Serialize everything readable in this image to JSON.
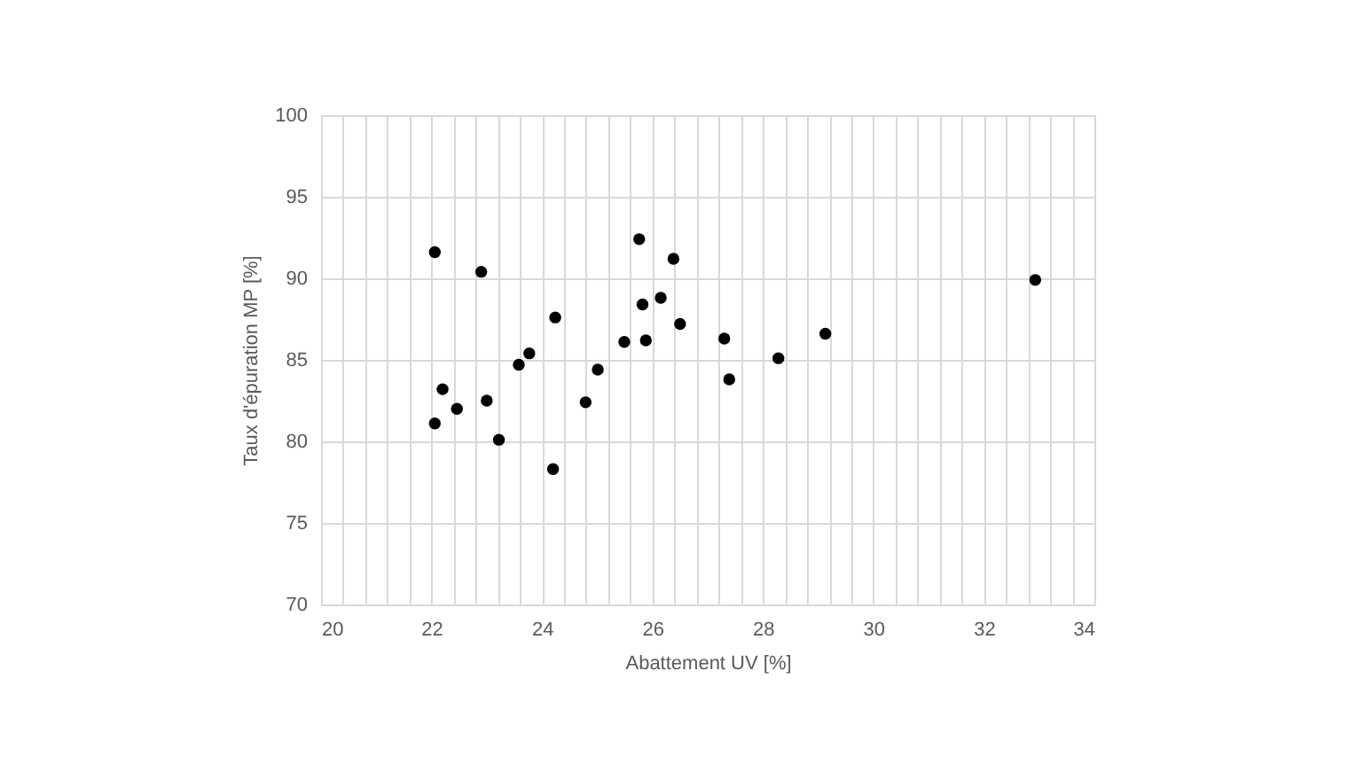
{
  "chart_data": {
    "type": "scatter",
    "xlabel": "Abattement  UV [%]",
    "ylabel": "Taux d'épuration MP [%]",
    "x": [
      22.06,
      22.9,
      22.06,
      22.2,
      22.46,
      23.0,
      23.22,
      23.58,
      23.77,
      24.24,
      24.2,
      24.79,
      25.01,
      25.49,
      25.76,
      25.82,
      25.88,
      26.15,
      26.38,
      26.5,
      27.3,
      27.39,
      28.28,
      29.13,
      32.93
    ],
    "series": [
      {
        "color": "#000000",
        "values": [
          91.6,
          90.4,
          81.1,
          83.2,
          82.0,
          82.5,
          80.1,
          84.7,
          85.4,
          87.6,
          78.3,
          82.4,
          84.4,
          86.1,
          92.4,
          88.4,
          86.2,
          88.8,
          91.2,
          87.2,
          86.3,
          83.8,
          85.1,
          86.6,
          89.9
        ]
      }
    ],
    "xlim": [
      20,
      34
    ],
    "ylim": [
      70,
      100
    ],
    "xticks": [
      20,
      {
        "value": 20.4,
        "label": null
      },
      {
        "value": 20.8,
        "label": null
      },
      {
        "value": 21.2,
        "label": null
      },
      {
        "value": 21.6,
        "label": null
      },
      22,
      {
        "value": 22.4,
        "label": null
      },
      {
        "value": 22.8,
        "label": null
      },
      {
        "value": 23.2,
        "label": null
      },
      {
        "value": 23.6,
        "label": null
      },
      24,
      {
        "value": 24.4,
        "label": null
      },
      {
        "value": 24.8,
        "label": null
      },
      {
        "value": 25.2,
        "label": null
      },
      {
        "value": 25.6,
        "label": null
      },
      26,
      {
        "value": 26.4,
        "label": null
      },
      {
        "value": 26.8,
        "label": null
      },
      {
        "value": 27.2,
        "label": null
      },
      {
        "value": 27.6,
        "label": null
      },
      28,
      {
        "value": 28.4,
        "label": null
      },
      {
        "value": 28.8,
        "label": null
      },
      {
        "value": 29.2,
        "label": null
      },
      {
        "value": 29.6,
        "label": null
      },
      30,
      {
        "value": 30.4,
        "label": null
      },
      {
        "value": 30.8,
        "label": null
      },
      {
        "value": 31.2,
        "label": null
      },
      {
        "value": 31.6,
        "label": null
      },
      32,
      {
        "value": 32.4,
        "label": null
      },
      {
        "value": 32.8,
        "label": null
      },
      {
        "value": 33.2,
        "label": null
      },
      {
        "value": 33.6,
        "label": null
      },
      34
    ],
    "yticks": [
      70,
      75,
      80,
      85,
      90,
      95,
      100
    ],
    "grid": true,
    "marker": "circle",
    "legend": false
  }
}
